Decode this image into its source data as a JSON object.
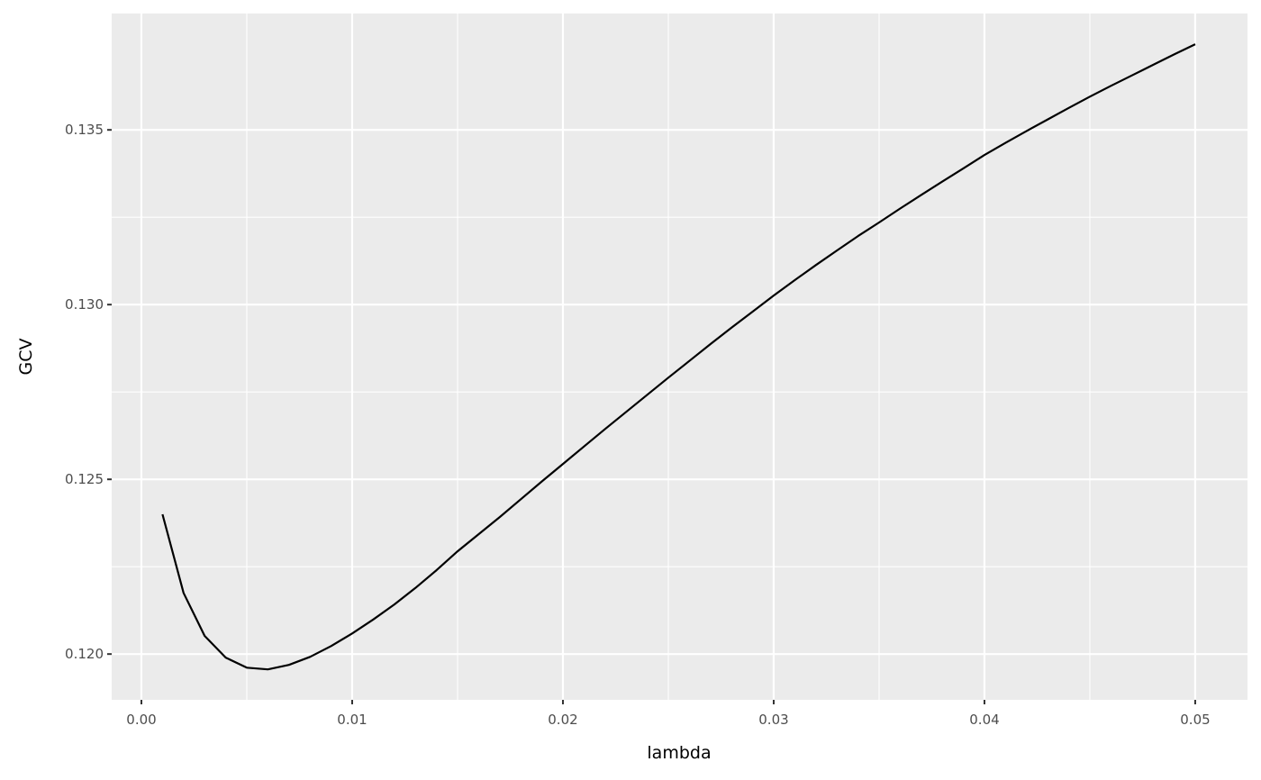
{
  "chart_data": {
    "type": "line",
    "title": "",
    "xlabel": "lambda",
    "ylabel": "GCV",
    "xlim": [
      -0.00141,
      0.05248
    ],
    "ylim": [
      0.11869,
      0.13833
    ],
    "grid": true,
    "x_ticks": [
      0.0,
      0.01,
      0.02,
      0.03,
      0.04,
      0.05
    ],
    "x_tick_labels": [
      "0.00",
      "0.01",
      "0.02",
      "0.03",
      "0.04",
      "0.05"
    ],
    "y_ticks": [
      0.12,
      0.125,
      0.13,
      0.135
    ],
    "y_tick_labels": [
      "0.120",
      "0.125",
      "0.130",
      "0.135"
    ],
    "colors": {
      "panel": "#ebebeb",
      "grid": "#ffffff",
      "line": "#000000"
    },
    "x": [
      0.001,
      0.002,
      0.003,
      0.004,
      0.005,
      0.006,
      0.007,
      0.008,
      0.009,
      0.01,
      0.011,
      0.012,
      0.013,
      0.014,
      0.015,
      0.016,
      0.017,
      0.018,
      0.019,
      0.02,
      0.021,
      0.022,
      0.023,
      0.024,
      0.025,
      0.026,
      0.027,
      0.028,
      0.029,
      0.03,
      0.031,
      0.032,
      0.033,
      0.034,
      0.035,
      0.036,
      0.037,
      0.038,
      0.039,
      0.04,
      0.041,
      0.042,
      0.043,
      0.044,
      0.045,
      0.046,
      0.047,
      0.048,
      0.049,
      0.05
    ],
    "y": [
      0.124,
      0.12175,
      0.12052,
      0.1199,
      0.11961,
      0.11956,
      0.11969,
      0.11992,
      0.12023,
      0.12059,
      0.12099,
      0.12142,
      0.12189,
      0.1224,
      0.12294,
      0.12343,
      0.12392,
      0.12443,
      0.12494,
      0.12544,
      0.12594,
      0.12644,
      0.12693,
      0.12742,
      0.12791,
      0.12839,
      0.12887,
      0.12934,
      0.1298,
      0.13026,
      0.1307,
      0.13113,
      0.13155,
      0.13196,
      0.13235,
      0.13275,
      0.13314,
      0.13352,
      0.1339,
      0.13428,
      0.13463,
      0.13497,
      0.1353,
      0.13563,
      0.13595,
      0.13626,
      0.13656,
      0.13686,
      0.13716,
      0.13745
    ]
  }
}
